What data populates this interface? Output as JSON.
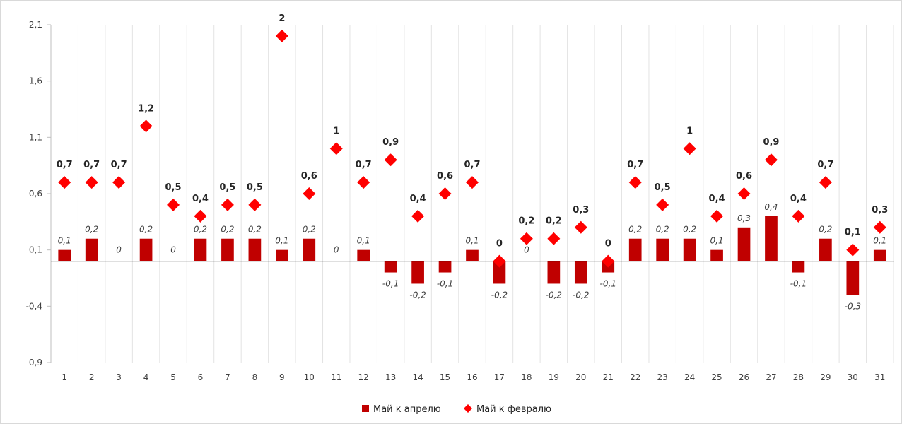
{
  "chart_data": {
    "type": "bar",
    "categories": [
      "1",
      "2",
      "3",
      "4",
      "5",
      "6",
      "7",
      "8",
      "9",
      "10",
      "11",
      "12",
      "13",
      "14",
      "15",
      "16",
      "17",
      "18",
      "19",
      "20",
      "21",
      "22",
      "23",
      "24",
      "25",
      "26",
      "27",
      "28",
      "29",
      "30",
      "31"
    ],
    "series": [
      {
        "name": "Май к апрелю",
        "kind": "bar",
        "values": [
          0.1,
          0.2,
          0,
          0.2,
          0,
          0.2,
          0.2,
          0.2,
          0.1,
          0.2,
          0,
          0.1,
          -0.1,
          -0.2,
          -0.1,
          0.1,
          -0.2,
          0,
          -0.2,
          -0.2,
          -0.1,
          0.2,
          0.2,
          0.2,
          0.1,
          0.3,
          0.4,
          -0.1,
          0.2,
          -0.3,
          0.1
        ],
        "labels": [
          "0,1",
          "0,2",
          "0",
          "0,2",
          "0",
          "0,2",
          "0,2",
          "0,2",
          "0,1",
          "0,2",
          "0",
          "0,1",
          "-0,1",
          "-0,2",
          "-0,1",
          "0,1",
          "-0,2",
          "0",
          "-0,2",
          "-0,2",
          "-0,1",
          "0,2",
          "0,2",
          "0,2",
          "0,1",
          "0,3",
          "0,4",
          "-0,1",
          "0,2",
          "-0,3",
          "0,1"
        ],
        "color": "#c00000"
      },
      {
        "name": "Май к февралю",
        "kind": "scatter",
        "values": [
          0.7,
          0.7,
          0.7,
          1.2,
          0.5,
          0.4,
          0.5,
          0.5,
          2,
          0.6,
          1,
          0.7,
          0.9,
          0.4,
          0.6,
          0.7,
          0,
          0.2,
          0.2,
          0.3,
          0,
          0.7,
          0.5,
          1,
          0.4,
          0.6,
          0.9,
          0.4,
          0.7,
          0.1,
          0.3
        ],
        "labels": [
          "0,7",
          "0,7",
          "0,7",
          "1,2",
          "0,5",
          "0,4",
          "0,5",
          "0,5",
          "2",
          "0,6",
          "1",
          "0,7",
          "0,9",
          "0,4",
          "0,6",
          "0,7",
          "0",
          "0,2",
          "0,2",
          "0,3",
          "0",
          "0,7",
          "0,5",
          "1",
          "0,4",
          "0,6",
          "0,9",
          "0,4",
          "0,7",
          "0,1",
          "0,3"
        ],
        "color": "#ff0000"
      }
    ],
    "y_ticks": [
      "2,1",
      "1,6",
      "1,1",
      "0,6",
      "0,1",
      "-0,4",
      "-0,9"
    ],
    "y_tick_values": [
      2.1,
      1.6,
      1.1,
      0.6,
      0.1,
      -0.4,
      -0.9
    ],
    "ylim": [
      -0.9,
      2.1
    ],
    "grid": "vertical",
    "legend": "bottom-center",
    "title": "",
    "xlabel": "",
    "ylabel": ""
  }
}
